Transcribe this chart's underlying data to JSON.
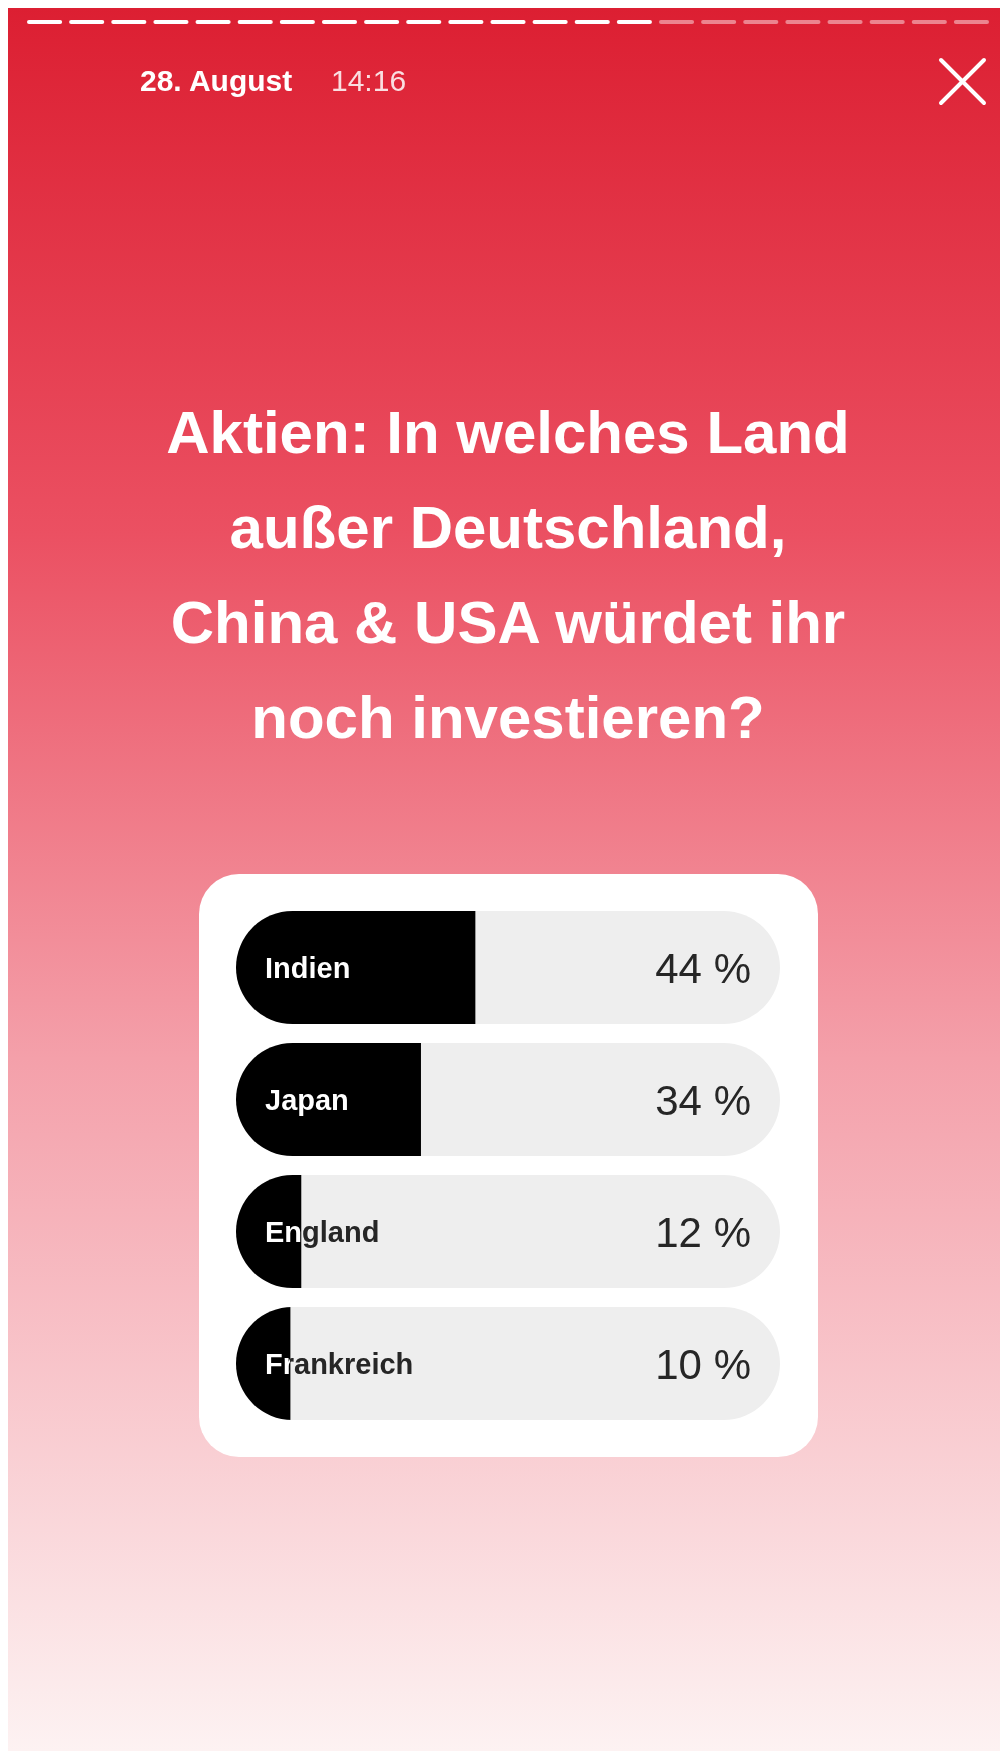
{
  "chart_data": {
    "type": "bar",
    "orientation": "horizontal",
    "title": "Aktien: In welches Land außer Deutschland, China & USA würdet ihr noch investieren?",
    "categories": [
      "Indien",
      "Japan",
      "England",
      "Frankreich"
    ],
    "values": [
      44,
      34,
      12,
      10
    ],
    "value_labels": [
      "44 %",
      "34 %",
      "12 %",
      "10 %"
    ],
    "color": "#000000",
    "xlim": [
      0,
      100
    ],
    "annotations": [
      "28. August",
      "14:16"
    ]
  }
}
